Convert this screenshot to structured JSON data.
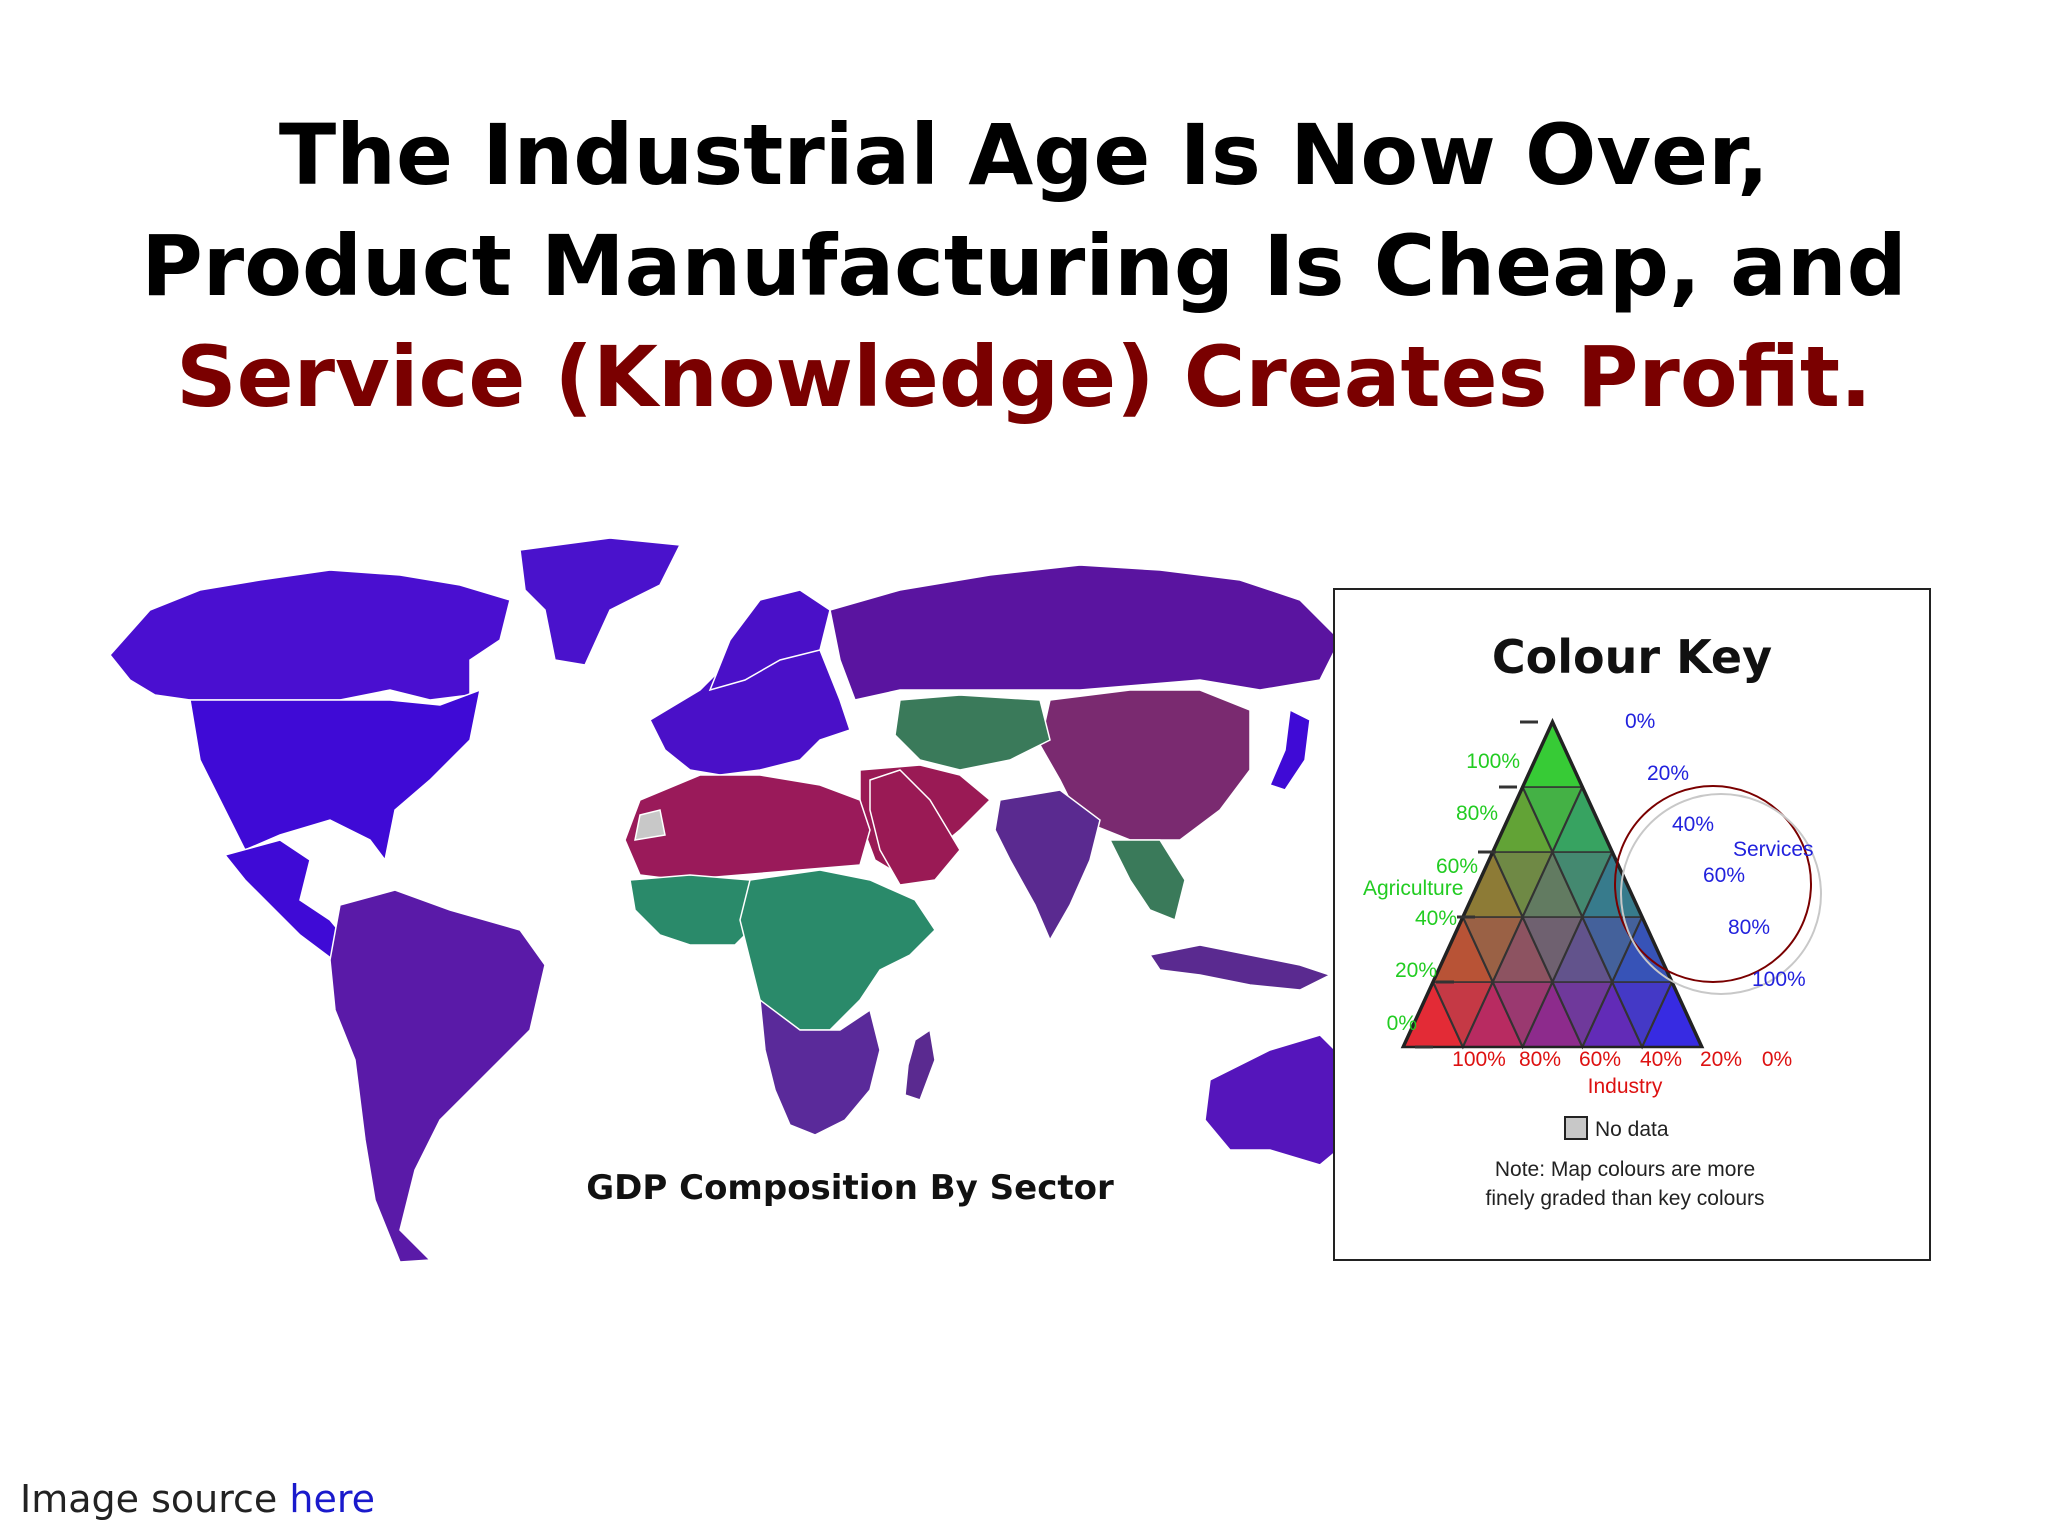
{
  "slide": {
    "title_line1": "The Industrial Age Is Now Over,",
    "title_line2": "Product Manufacturing Is Cheap, and",
    "title_line3": "Service (Knowledge) Creates Profit.",
    "accent_color": "#7a0000"
  },
  "map": {
    "caption": "GDP Composition By Sector",
    "region_colors": {
      "north_america": "#3f0ad6",
      "canada": "#4a0fd0",
      "greenland": "#4a12cc",
      "south_america": "#5a1aa8",
      "europe": "#4a10c8",
      "russia": "#5a14a0",
      "china": "#7a2a70",
      "middle_east": "#9a1a55",
      "india": "#5a2a90",
      "north_africa": "#9a1a5a",
      "central_africa": "#2a8a6a",
      "southern_africa": "#5a2a9a",
      "southeast_asia": "#3a7a5a",
      "oceania": "#5515bb",
      "no_data": "#c8c8c8"
    }
  },
  "colour_key": {
    "title": "Colour Key",
    "agriculture_label": "Agriculture",
    "services_label": "Services",
    "industry_label": "Industry",
    "agriculture_ticks": [
      "100%",
      "80%",
      "60%",
      "40%",
      "20%",
      "0%"
    ],
    "services_ticks": [
      "0%",
      "20%",
      "40%",
      "60%",
      "80%",
      "100%"
    ],
    "industry_ticks": [
      "100%",
      "80%",
      "60%",
      "40%",
      "20%",
      "0%"
    ],
    "no_data_label": "No data",
    "note_line1": "Note: Map colours are more",
    "note_line2": "finely graded than key colours",
    "colors": {
      "agriculture": "#22cc22",
      "services": "#2222dd",
      "industry": "#dd1111",
      "no_data": "#c8c8c8",
      "highlight_ring": "#7a0000"
    }
  },
  "footer": {
    "source_text": "Image source ",
    "source_link": "here",
    "link_color": "#1a1acc"
  }
}
